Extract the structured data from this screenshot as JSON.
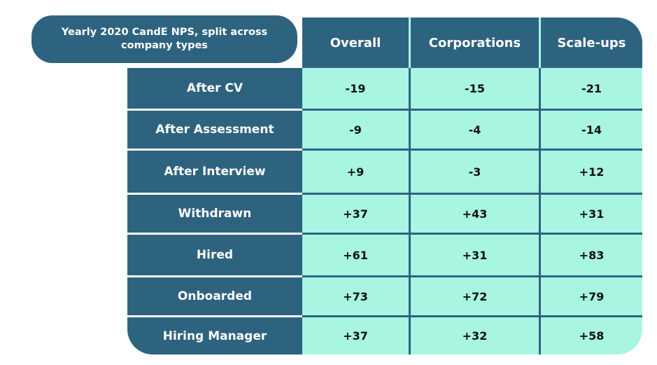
{
  "title": "Yearly 2020 CandE NPS, split across company types",
  "colors": {
    "header_bg": "#2e6380",
    "cell_bg": "#a8f5e2",
    "grid_line": "#2e6380",
    "header_text": "#ffffff",
    "value_text": "#111111"
  },
  "chart_data": {
    "type": "table",
    "title": "Yearly 2020 CandE NPS, split across company types",
    "columns": [
      "Overall",
      "Corporations",
      "Scale-ups"
    ],
    "rows": [
      {
        "label": "After CV",
        "values": [
          "-19",
          "-15",
          "-21"
        ]
      },
      {
        "label": "After Assessment",
        "values": [
          "-9",
          "-4",
          "-14"
        ]
      },
      {
        "label": "After Interview",
        "values": [
          "+9",
          "-3",
          "+12"
        ]
      },
      {
        "label": "Withdrawn",
        "values": [
          "+37",
          "+43",
          "+31"
        ]
      },
      {
        "label": "Hired",
        "values": [
          "+61",
          "+31",
          "+83"
        ]
      },
      {
        "label": "Onboarded",
        "values": [
          "+73",
          "+72",
          "+79"
        ]
      },
      {
        "label": "Hiring Manager",
        "values": [
          "+37",
          "+32",
          "+58"
        ]
      }
    ]
  }
}
